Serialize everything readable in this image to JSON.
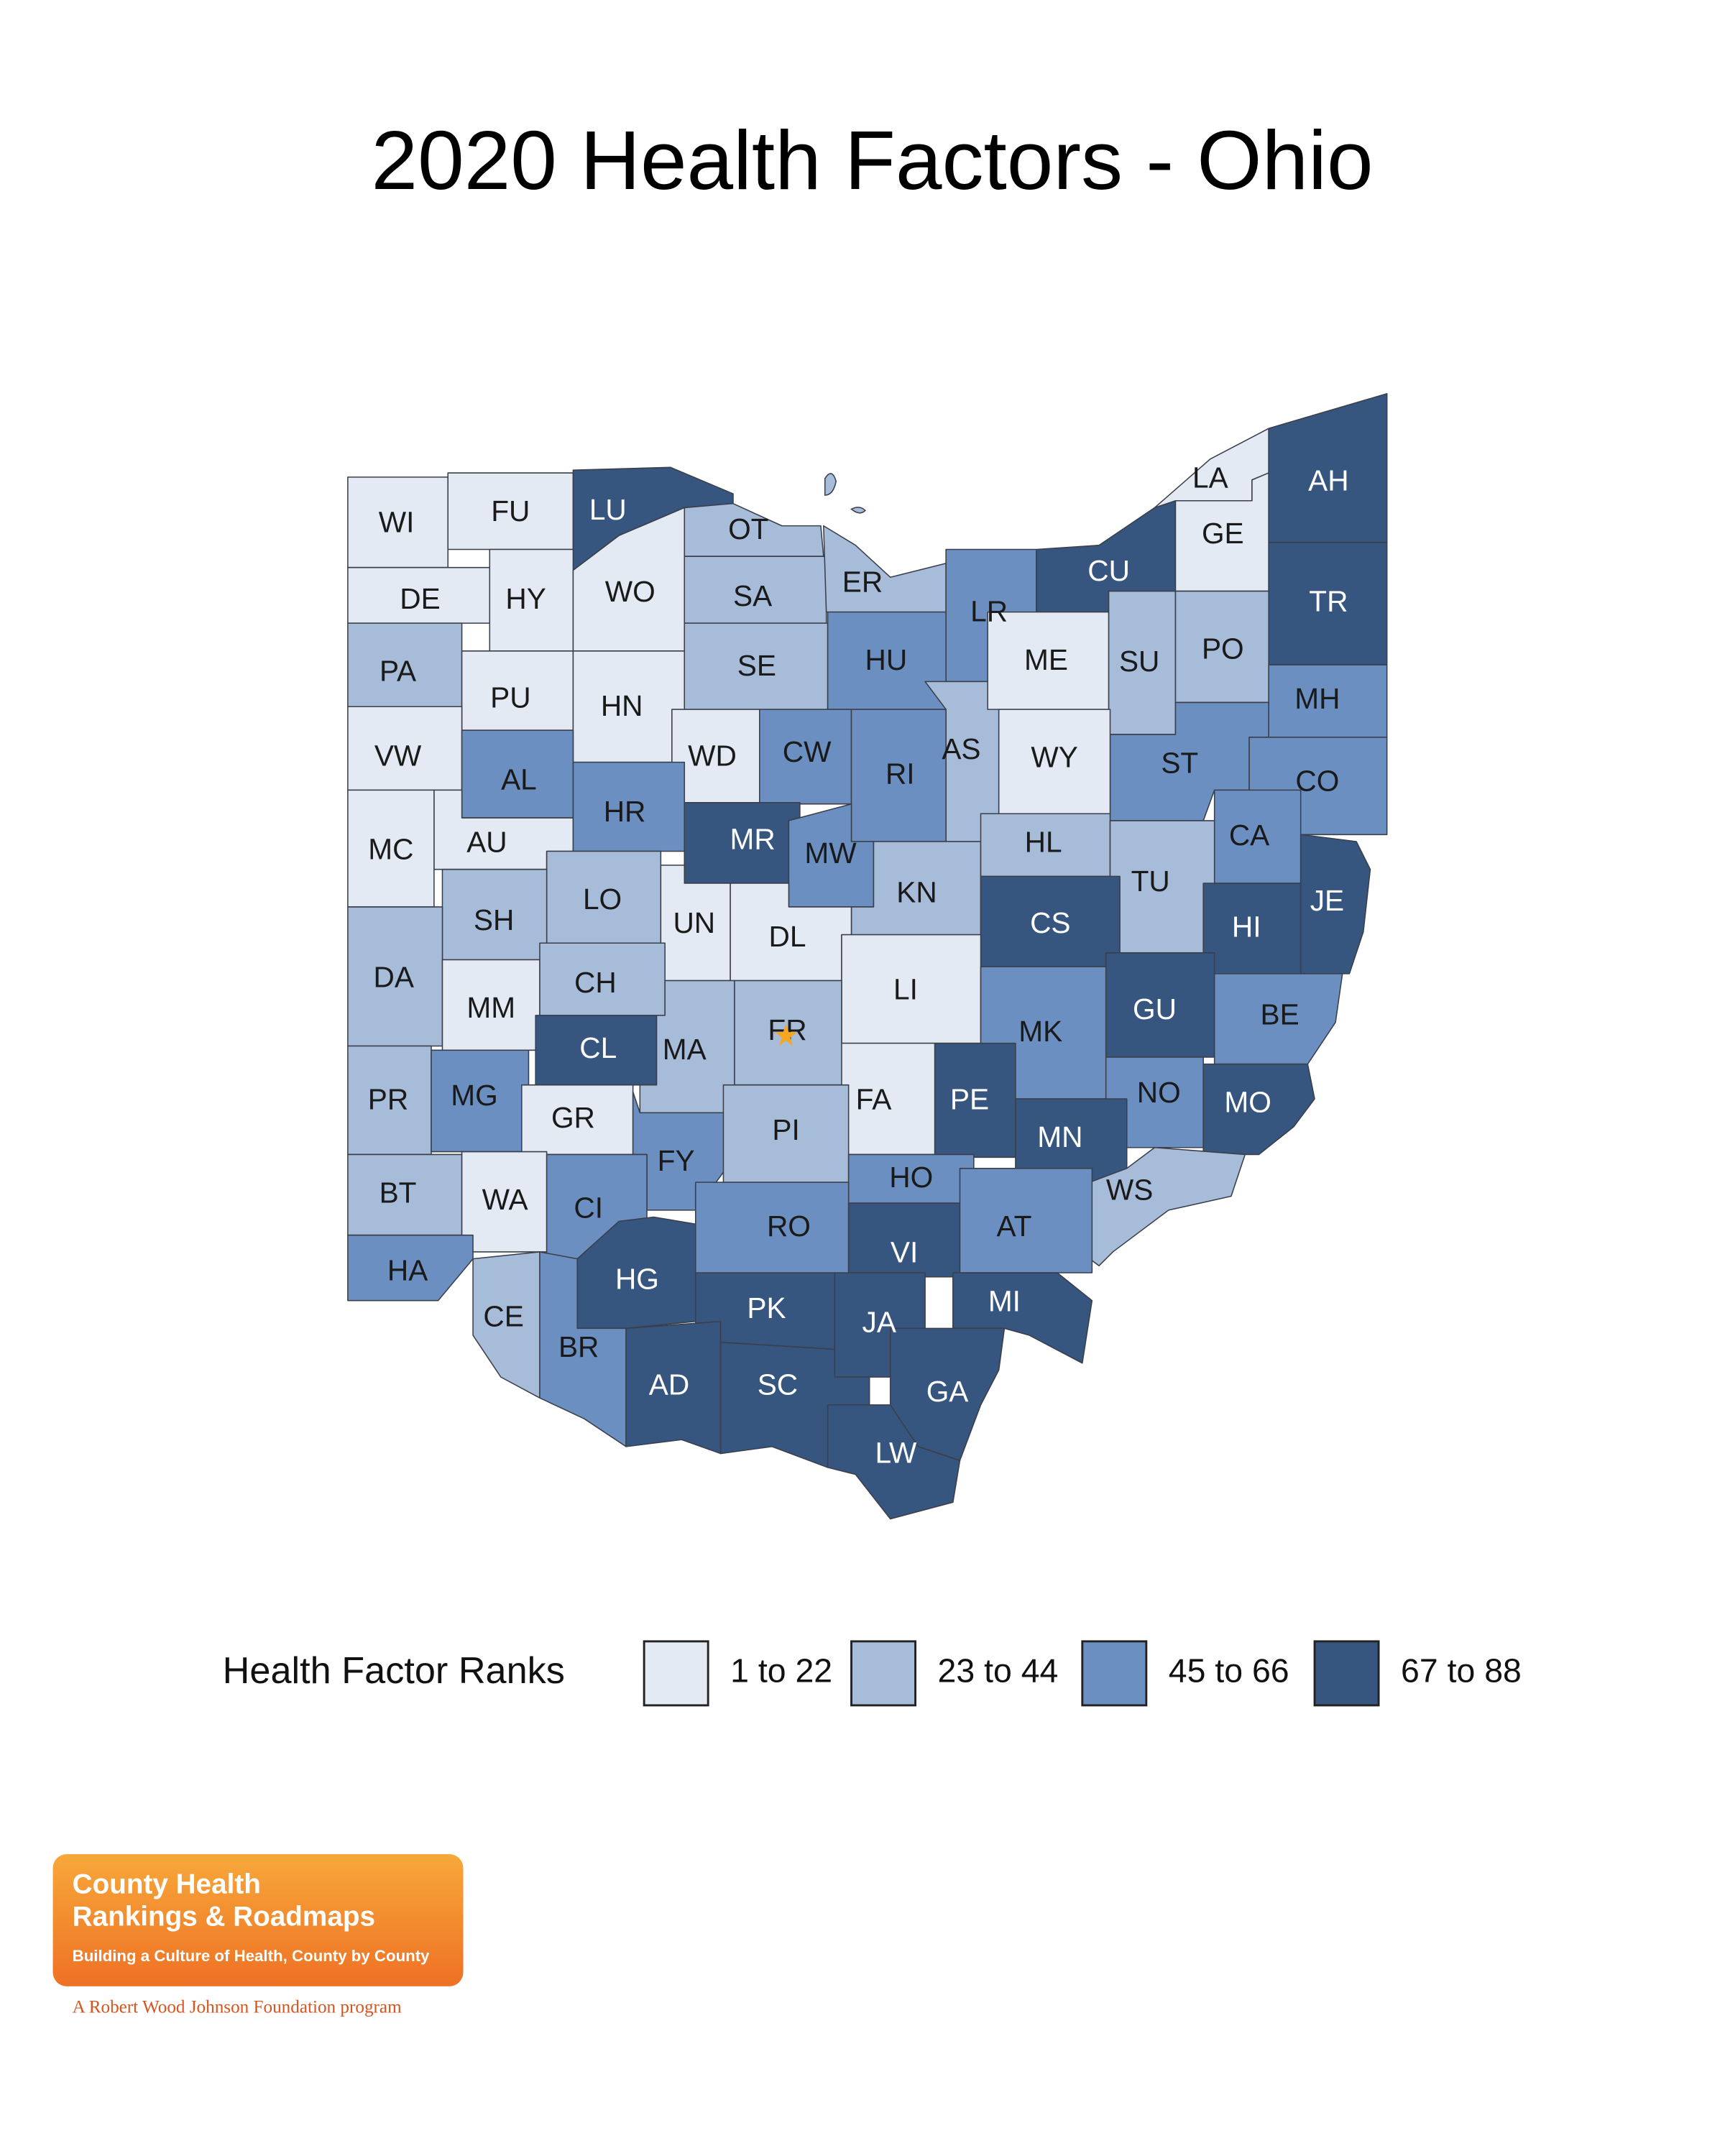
{
  "title": "2020 Health Factors - Ohio",
  "map": {
    "counties": [
      {
        "abbr": "WI",
        "color": "#e3eaf4"
      },
      {
        "abbr": "FU",
        "color": "#e3eaf4"
      },
      {
        "abbr": "LU",
        "color": "#36557f"
      },
      {
        "abbr": "OT",
        "color": "#a7bcd9"
      },
      {
        "abbr": "DE",
        "color": "#e3eaf4"
      },
      {
        "abbr": "HY",
        "color": "#e3eaf4"
      },
      {
        "abbr": "WO",
        "color": "#e3eaf4"
      },
      {
        "abbr": "SA",
        "color": "#a7bcd9"
      },
      {
        "abbr": "ER",
        "color": "#a7bcd9"
      },
      {
        "abbr": "LR",
        "color": "#6a8fc0"
      },
      {
        "abbr": "CU",
        "color": "#36557f"
      },
      {
        "abbr": "LA",
        "color": "#e3eaf4"
      },
      {
        "abbr": "GE",
        "color": "#e3eaf4"
      },
      {
        "abbr": "AH",
        "color": "#36557f"
      },
      {
        "abbr": "TR",
        "color": "#36557f"
      },
      {
        "abbr": "PA",
        "color": "#a7bcd9"
      },
      {
        "abbr": "PU",
        "color": "#e3eaf4"
      },
      {
        "abbr": "HN",
        "color": "#e3eaf4"
      },
      {
        "abbr": "SE",
        "color": "#a7bcd9"
      },
      {
        "abbr": "HU",
        "color": "#6a8fc0"
      },
      {
        "abbr": "AS",
        "color": "#a7bcd9"
      },
      {
        "abbr": "ME",
        "color": "#e3eaf4"
      },
      {
        "abbr": "SU",
        "color": "#a7bcd9"
      },
      {
        "abbr": "PO",
        "color": "#a7bcd9"
      },
      {
        "abbr": "ST",
        "color": "#6a8fc0"
      },
      {
        "abbr": "MH",
        "color": "#6a8fc0"
      },
      {
        "abbr": "VW",
        "color": "#e3eaf4"
      },
      {
        "abbr": "AL",
        "color": "#6a8fc0"
      },
      {
        "abbr": "AU",
        "color": "#e3eaf4"
      },
      {
        "abbr": "MC",
        "color": "#e3eaf4"
      },
      {
        "abbr": "WD",
        "color": "#e3eaf4"
      },
      {
        "abbr": "CW",
        "color": "#6a8fc0"
      },
      {
        "abbr": "RI",
        "color": "#6a8fc0"
      },
      {
        "abbr": "WY",
        "color": "#e3eaf4"
      },
      {
        "abbr": "CO",
        "color": "#6a8fc0"
      },
      {
        "abbr": "CA",
        "color": "#6a8fc0"
      },
      {
        "abbr": "JE",
        "color": "#36557f"
      },
      {
        "abbr": "HR",
        "color": "#6a8fc0"
      },
      {
        "abbr": "MR",
        "color": "#36557f"
      },
      {
        "abbr": "MW",
        "color": "#6a8fc0"
      },
      {
        "abbr": "KN",
        "color": "#a7bcd9"
      },
      {
        "abbr": "HL",
        "color": "#a7bcd9"
      },
      {
        "abbr": "TU",
        "color": "#a7bcd9"
      },
      {
        "abbr": "HI",
        "color": "#36557f"
      },
      {
        "abbr": "CS",
        "color": "#36557f"
      },
      {
        "abbr": "LO",
        "color": "#a7bcd9"
      },
      {
        "abbr": "SH",
        "color": "#a7bcd9"
      },
      {
        "abbr": "UN",
        "color": "#e3eaf4"
      },
      {
        "abbr": "DL",
        "color": "#e3eaf4"
      },
      {
        "abbr": "LI",
        "color": "#e3eaf4"
      },
      {
        "abbr": "DA",
        "color": "#a7bcd9"
      },
      {
        "abbr": "MM",
        "color": "#e3eaf4"
      },
      {
        "abbr": "CH",
        "color": "#a7bcd9"
      },
      {
        "abbr": "CL",
        "color": "#36557f"
      },
      {
        "abbr": "MA",
        "color": "#a7bcd9"
      },
      {
        "abbr": "FA",
        "color": "#e3eaf4"
      },
      {
        "abbr": "FR",
        "color": "#a7bcd9"
      },
      {
        "abbr": "MK",
        "color": "#6a8fc0"
      },
      {
        "abbr": "GU",
        "color": "#36557f"
      },
      {
        "abbr": "BE",
        "color": "#6a8fc0"
      },
      {
        "abbr": "PE",
        "color": "#36557f"
      },
      {
        "abbr": "NO",
        "color": "#6a8fc0"
      },
      {
        "abbr": "MO",
        "color": "#36557f"
      },
      {
        "abbr": "MN",
        "color": "#36557f"
      },
      {
        "abbr": "PR",
        "color": "#a7bcd9"
      },
      {
        "abbr": "MG",
        "color": "#6a8fc0"
      },
      {
        "abbr": "GR",
        "color": "#e3eaf4"
      },
      {
        "abbr": "FY",
        "color": "#6a8fc0"
      },
      {
        "abbr": "PI",
        "color": "#a7bcd9"
      },
      {
        "abbr": "HO",
        "color": "#6a8fc0"
      },
      {
        "abbr": "WS",
        "color": "#a7bcd9"
      },
      {
        "abbr": "BT",
        "color": "#a7bcd9"
      },
      {
        "abbr": "WA",
        "color": "#e3eaf4"
      },
      {
        "abbr": "CI",
        "color": "#6a8fc0"
      },
      {
        "abbr": "RO",
        "color": "#6a8fc0"
      },
      {
        "abbr": "VI",
        "color": "#36557f"
      },
      {
        "abbr": "AT",
        "color": "#6a8fc0"
      },
      {
        "abbr": "HA",
        "color": "#6a8fc0"
      },
      {
        "abbr": "CE",
        "color": "#a7bcd9"
      },
      {
        "abbr": "HG",
        "color": "#36557f"
      },
      {
        "abbr": "BR",
        "color": "#6a8fc0"
      },
      {
        "abbr": "PK",
        "color": "#36557f"
      },
      {
        "abbr": "JA",
        "color": "#36557f"
      },
      {
        "abbr": "MI",
        "color": "#36557f"
      },
      {
        "abbr": "AD",
        "color": "#36557f"
      },
      {
        "abbr": "SC",
        "color": "#36557f"
      },
      {
        "abbr": "GA",
        "color": "#36557f"
      },
      {
        "abbr": "LW",
        "color": "#36557f"
      }
    ]
  },
  "legend": {
    "title": "Health Factor Ranks",
    "items": [
      {
        "label": "1 to 22",
        "color": "#e3eaf4"
      },
      {
        "label": "23 to 44",
        "color": "#a7bcd9"
      },
      {
        "label": "45 to 66",
        "color": "#6a8fc0"
      },
      {
        "label": "67 to 88",
        "color": "#36557f"
      }
    ]
  },
  "logo": {
    "line1": "County Health",
    "line2": "Rankings & Roadmaps",
    "tagline": "Building a Culture of Health, County by County",
    "footer": "A Robert Wood Johnson Foundation program"
  }
}
